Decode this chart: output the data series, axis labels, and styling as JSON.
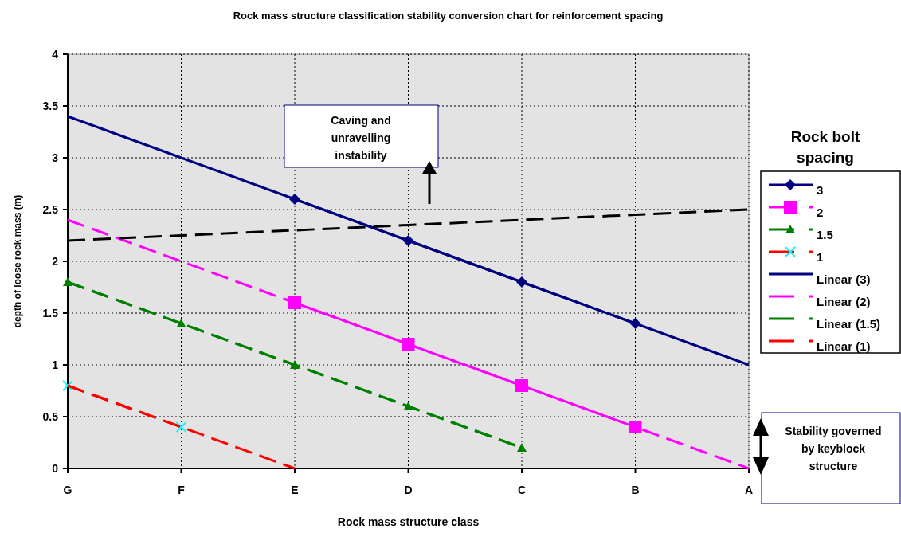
{
  "chart_data": {
    "type": "line",
    "title": "Rock mass structure classification stability conversion chart for reinforcement spacing",
    "xlabel": "Rock mass structure class",
    "ylabel": "depth of loose rock mass (m)",
    "legend_title": "Rock bolt spacing",
    "categories": [
      "G",
      "F",
      "E",
      "D",
      "C",
      "B",
      "A"
    ],
    "ylim": [
      0,
      4
    ],
    "yticks": [
      0,
      0.5,
      1,
      1.5,
      2,
      2.5,
      3,
      3.5,
      4
    ],
    "grid": true,
    "legend": "right",
    "series": [
      {
        "name": "3",
        "color": "#000080",
        "values": [
          null,
          null,
          2.6,
          2.2,
          1.8,
          1.4,
          null
        ],
        "marker": "diamond",
        "line_style": "solid"
      },
      {
        "name": "2",
        "color": "#ff00ff",
        "values": [
          null,
          null,
          1.6,
          1.2,
          0.8,
          0.4,
          null
        ],
        "marker": "square",
        "line_style": "dashed"
      },
      {
        "name": "1.5",
        "color": "#008000",
        "values": [
          1.8,
          1.4,
          1.0,
          0.6,
          0.2,
          null,
          null
        ],
        "marker": "triangle",
        "line_style": "dashed"
      },
      {
        "name": "1",
        "color": "#ff0000",
        "values": [
          0.8,
          0.4,
          null,
          null,
          null,
          null,
          null
        ],
        "marker": "cross",
        "line_style": "dashed"
      },
      {
        "name": "Linear (3)",
        "color": "#000080",
        "values": [
          3.4,
          3.0,
          2.6,
          2.2,
          1.8,
          1.4,
          1.0
        ],
        "marker": "none",
        "line_style": "solid"
      },
      {
        "name": "Linear (2)",
        "color": "#ff00ff",
        "values": [
          2.4,
          2.0,
          1.6,
          1.2,
          0.8,
          0.4,
          0.0
        ],
        "marker": "none",
        "line_style": "dashed"
      },
      {
        "name": "Linear (1.5)",
        "color": "#008000",
        "values": [
          1.8,
          1.4,
          1.0,
          0.6,
          0.2,
          null,
          null
        ],
        "marker": "none",
        "line_style": "dashed"
      },
      {
        "name": "Linear (1)",
        "color": "#ff0000",
        "values": [
          0.8,
          0.4,
          0.0,
          null,
          null,
          null,
          null
        ],
        "marker": "none",
        "line_style": "dashed"
      },
      {
        "color": "#000000",
        "values": [
          2.2,
          2.25,
          2.3,
          2.35,
          2.4,
          2.45,
          2.5
        ],
        "marker": "none",
        "line_style": "dashed"
      }
    ],
    "annotations": [
      "Caving and unravelling instability",
      "Stability governed by keyblock structure"
    ]
  }
}
